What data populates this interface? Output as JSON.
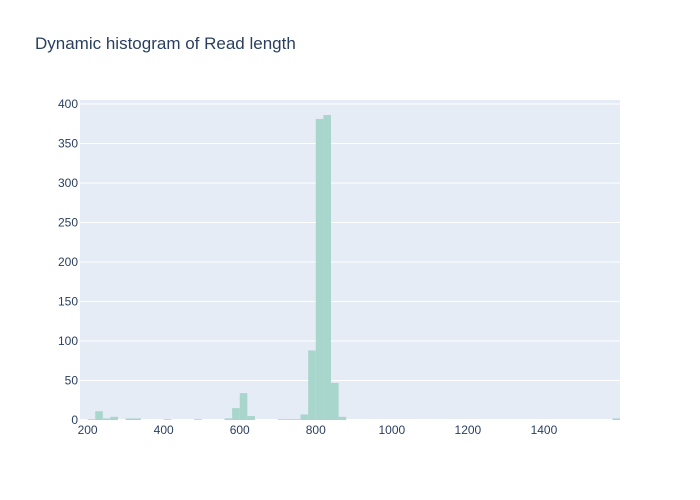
{
  "chart_data": {
    "type": "bar",
    "title": "Dynamic histogram of Read length",
    "xlabel": "",
    "ylabel": "",
    "xlim": [
      180,
      1600
    ],
    "ylim": [
      0,
      405
    ],
    "x_ticks": [
      "200",
      "400",
      "600",
      "800",
      "1000",
      "1200",
      "1400"
    ],
    "y_ticks": [
      "0",
      "50",
      "100",
      "150",
      "200",
      "250",
      "300",
      "350",
      "400"
    ],
    "grid": true,
    "bar_color": "#a8d5cc",
    "plot_bg": "#e5ecf6",
    "bin_width": 20,
    "bins": [
      {
        "x0": 200,
        "value": 1
      },
      {
        "x0": 220,
        "value": 11
      },
      {
        "x0": 240,
        "value": 2
      },
      {
        "x0": 260,
        "value": 4
      },
      {
        "x0": 300,
        "value": 2
      },
      {
        "x0": 320,
        "value": 2
      },
      {
        "x0": 400,
        "value": 1
      },
      {
        "x0": 480,
        "value": 1
      },
      {
        "x0": 560,
        "value": 2
      },
      {
        "x0": 580,
        "value": 15
      },
      {
        "x0": 600,
        "value": 34
      },
      {
        "x0": 620,
        "value": 5
      },
      {
        "x0": 700,
        "value": 1
      },
      {
        "x0": 720,
        "value": 1
      },
      {
        "x0": 740,
        "value": 1
      },
      {
        "x0": 760,
        "value": 7
      },
      {
        "x0": 780,
        "value": 88
      },
      {
        "x0": 800,
        "value": 381
      },
      {
        "x0": 820,
        "value": 386
      },
      {
        "x0": 840,
        "value": 47
      },
      {
        "x0": 860,
        "value": 4
      },
      {
        "x0": 1580,
        "value": 2
      }
    ]
  }
}
